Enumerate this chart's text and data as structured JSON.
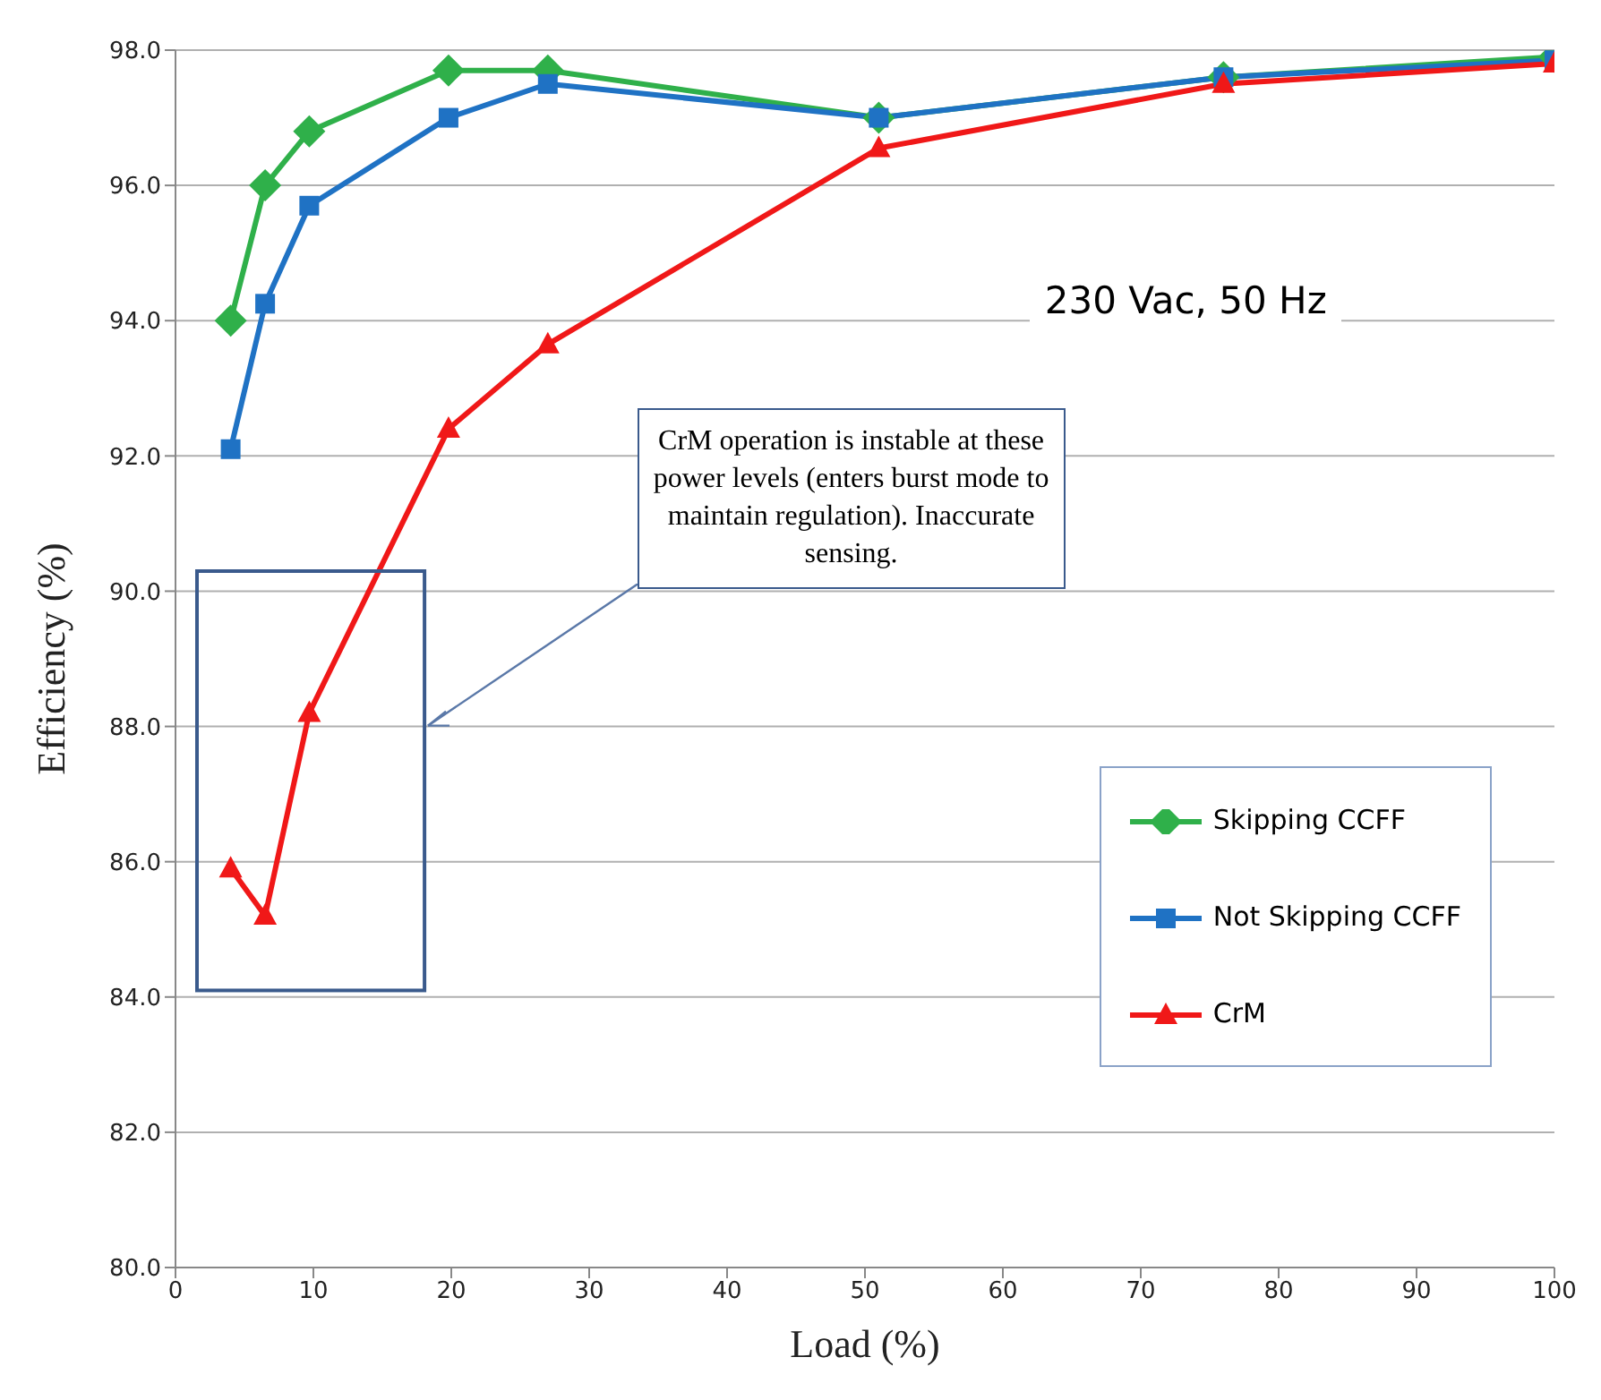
{
  "chart_data": {
    "type": "line",
    "xlabel": "Load (%)",
    "ylabel": "Efficiency (%)",
    "xlim": [
      0,
      100
    ],
    "xticks": [
      0,
      10,
      20,
      30,
      40,
      50,
      60,
      70,
      80,
      90,
      100
    ],
    "ylim": [
      80,
      98
    ],
    "yticks": [
      {
        "value": 80,
        "label": "80.0"
      },
      {
        "value": 82,
        "label": "82.0"
      },
      {
        "value": 84,
        "label": "84.0"
      },
      {
        "value": 86,
        "label": "86.0"
      },
      {
        "value": 88,
        "label": "88.0"
      },
      {
        "value": 90,
        "label": "90.0"
      },
      {
        "value": 92,
        "label": "92.0"
      },
      {
        "value": 94,
        "label": "94.0"
      },
      {
        "value": 96,
        "label": "96.0"
      },
      {
        "value": 98,
        "label": "98.0"
      }
    ],
    "grid": "y",
    "legend": "bottom right",
    "annotations": [
      "230 Vac, 50 Hz",
      "CrM operation is instable at these power levels (enters burst mode to maintain regulation). Inaccurate sensing."
    ],
    "x": [
      4,
      6.5,
      9.7,
      19.8,
      27,
      51,
      76,
      100
    ],
    "series": [
      {
        "name": "Skipping CCFF",
        "color": "#2fb04a",
        "marker": "diamond",
        "values": [
          94.0,
          96.0,
          96.8,
          97.7,
          97.7,
          97.0,
          97.6,
          97.9
        ]
      },
      {
        "name": "Not Skipping CCFF",
        "color": "#1f72c4",
        "marker": "square",
        "values": [
          92.1,
          94.25,
          95.7,
          97.0,
          97.5,
          97.0,
          97.6,
          97.85
        ]
      },
      {
        "name": "CrM",
        "color": "#f01818",
        "marker": "triangle",
        "values": [
          85.9,
          85.2,
          88.2,
          92.4,
          93.65,
          96.55,
          97.5,
          97.8
        ]
      }
    ]
  }
}
